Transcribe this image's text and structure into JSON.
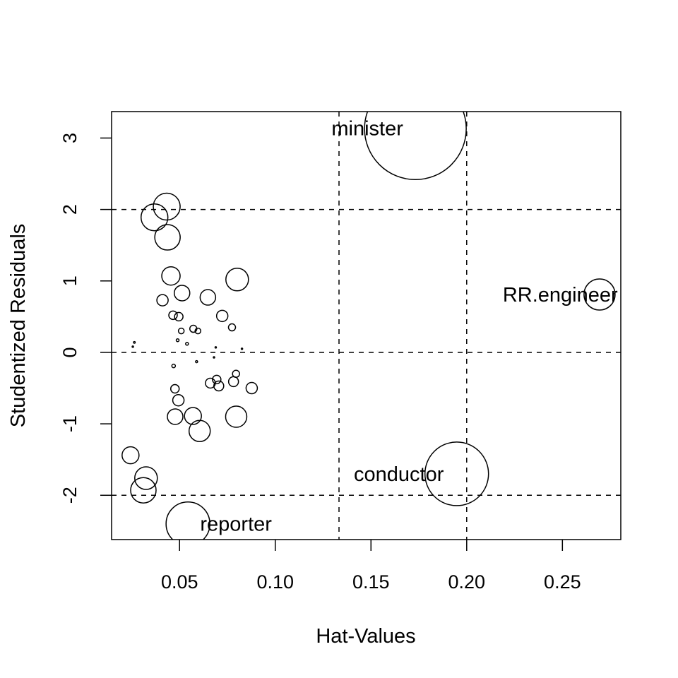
{
  "chart_data": {
    "type": "scatter",
    "title": "",
    "xlabel": "Hat-Values",
    "ylabel": "Studentized Residuals",
    "xlim": [
      0.0145,
      0.2805
    ],
    "ylim": [
      -2.62,
      3.37
    ],
    "x_ticks": [
      0.05,
      0.1,
      0.15,
      0.2,
      0.25
    ],
    "x_tick_labels": [
      "0.05",
      "0.10",
      "0.15",
      "0.20",
      "0.25"
    ],
    "y_ticks": [
      -2,
      -1,
      0,
      1,
      2,
      3
    ],
    "y_tick_labels": [
      "-2",
      "-1",
      "0",
      "1",
      "2",
      "3"
    ],
    "grid": false,
    "reference_lines": {
      "vertical": [
        0.1333,
        0.2
      ],
      "horizontal": [
        -2,
        0,
        2
      ]
    },
    "size_encoding": "circle area proportional to Cook's distance",
    "points": [
      {
        "x": 0.1732,
        "y": 3.13,
        "r": 72,
        "label": "minister"
      },
      {
        "x": 0.2694,
        "y": 0.81,
        "r": 22,
        "label": "RR.engineer"
      },
      {
        "x": 0.1948,
        "y": -1.7,
        "r": 45,
        "label": "conductor"
      },
      {
        "x": 0.0544,
        "y": -2.4,
        "r": 31,
        "label": "reporter"
      },
      {
        "x": 0.0433,
        "y": 2.04,
        "r": 19
      },
      {
        "x": 0.0369,
        "y": 1.89,
        "r": 19
      },
      {
        "x": 0.0437,
        "y": 1.61,
        "r": 18
      },
      {
        "x": 0.0455,
        "y": 1.07,
        "r": 13
      },
      {
        "x": 0.0801,
        "y": 1.02,
        "r": 16
      },
      {
        "x": 0.0513,
        "y": 0.83,
        "r": 11
      },
      {
        "x": 0.0648,
        "y": 0.77,
        "r": 11
      },
      {
        "x": 0.0411,
        "y": 0.73,
        "r": 8
      },
      {
        "x": 0.0723,
        "y": 0.51,
        "r": 8
      },
      {
        "x": 0.0466,
        "y": 0.52,
        "r": 6
      },
      {
        "x": 0.0496,
        "y": 0.5,
        "r": 6
      },
      {
        "x": 0.0774,
        "y": 0.35,
        "r": 5
      },
      {
        "x": 0.0572,
        "y": 0.33,
        "r": 5
      },
      {
        "x": 0.0596,
        "y": 0.3,
        "r": 4
      },
      {
        "x": 0.0509,
        "y": 0.3,
        "r": 4
      },
      {
        "x": 0.049,
        "y": 0.17,
        "r": 2
      },
      {
        "x": 0.0539,
        "y": 0.12,
        "r": 2
      },
      {
        "x": 0.0264,
        "y": 0.14,
        "r": 1.2
      },
      {
        "x": 0.0256,
        "y": 0.08,
        "r": 1
      },
      {
        "x": 0.0689,
        "y": 0.07,
        "r": 1
      },
      {
        "x": 0.0826,
        "y": 0.05,
        "r": 1
      },
      {
        "x": 0.068,
        "y": -0.07,
        "r": 1
      },
      {
        "x": 0.0589,
        "y": -0.13,
        "r": 1.5
      },
      {
        "x": 0.0469,
        "y": -0.19,
        "r": 2.5
      },
      {
        "x": 0.0795,
        "y": -0.3,
        "r": 5
      },
      {
        "x": 0.0694,
        "y": -0.38,
        "r": 6
      },
      {
        "x": 0.0782,
        "y": -0.41,
        "r": 7
      },
      {
        "x": 0.0661,
        "y": -0.43,
        "r": 7
      },
      {
        "x": 0.0705,
        "y": -0.47,
        "r": 7
      },
      {
        "x": 0.0877,
        "y": -0.5,
        "r": 8
      },
      {
        "x": 0.0476,
        "y": -0.51,
        "r": 6
      },
      {
        "x": 0.0494,
        "y": -0.67,
        "r": 8
      },
      {
        "x": 0.057,
        "y": -0.89,
        "r": 12
      },
      {
        "x": 0.0477,
        "y": -0.9,
        "r": 11
      },
      {
        "x": 0.0796,
        "y": -0.9,
        "r": 15
      },
      {
        "x": 0.0605,
        "y": -1.1,
        "r": 15
      },
      {
        "x": 0.0244,
        "y": -1.44,
        "r": 12
      },
      {
        "x": 0.0325,
        "y": -1.76,
        "r": 16
      },
      {
        "x": 0.0311,
        "y": -1.93,
        "r": 18
      }
    ]
  }
}
